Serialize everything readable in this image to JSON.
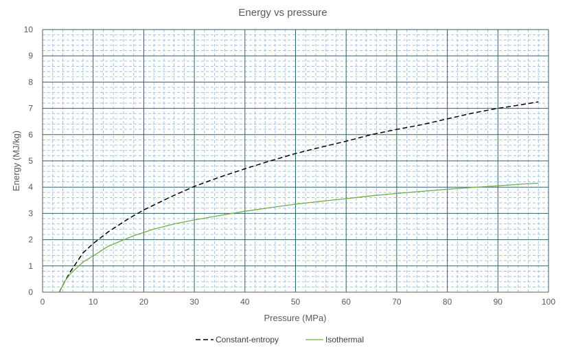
{
  "chart_data": {
    "type": "line",
    "title": "Energy vs pressure",
    "xlabel": "Pressure (MPa)",
    "ylabel": "Energy (MJ/kg)",
    "xlim": [
      0,
      100
    ],
    "ylim": [
      0,
      10
    ],
    "xticks": [
      "0",
      "10",
      "20",
      "30",
      "40",
      "50",
      "60",
      "70",
      "80",
      "90",
      "100"
    ],
    "yticks": [
      "0",
      "1",
      "2",
      "3",
      "4",
      "5",
      "6",
      "7",
      "8",
      "9",
      "10"
    ],
    "grid": {
      "major": true,
      "minor": true
    },
    "legend_position": "bottom",
    "series": [
      {
        "name": "Constant-entropy",
        "color": "#000000",
        "dash": "dashed",
        "x": [
          3.3,
          4.5,
          5.5,
          8,
          10,
          13,
          17,
          20,
          25,
          30,
          35,
          40,
          45,
          50,
          55,
          60,
          65,
          70,
          75,
          80,
          85,
          90,
          95,
          98
        ],
        "y": [
          0.0,
          0.45,
          0.78,
          1.5,
          1.85,
          2.3,
          2.8,
          3.13,
          3.6,
          4.03,
          4.38,
          4.7,
          5.0,
          5.28,
          5.52,
          5.75,
          6.0,
          6.2,
          6.38,
          6.6,
          6.82,
          7.0,
          7.15,
          7.25
        ]
      },
      {
        "name": "Isothermal",
        "color": "#70ad47",
        "dash": "solid",
        "x": [
          3.3,
          4.5,
          5.5,
          8,
          10,
          13,
          18,
          22,
          26,
          30,
          35,
          40,
          45,
          50,
          55,
          60,
          65,
          70,
          75,
          80,
          85,
          90,
          95,
          98
        ],
        "y": [
          0.0,
          0.45,
          0.7,
          1.15,
          1.38,
          1.75,
          2.15,
          2.4,
          2.6,
          2.75,
          2.92,
          3.08,
          3.22,
          3.35,
          3.46,
          3.56,
          3.67,
          3.76,
          3.84,
          3.92,
          3.99,
          4.05,
          4.12,
          4.15
        ]
      }
    ]
  }
}
